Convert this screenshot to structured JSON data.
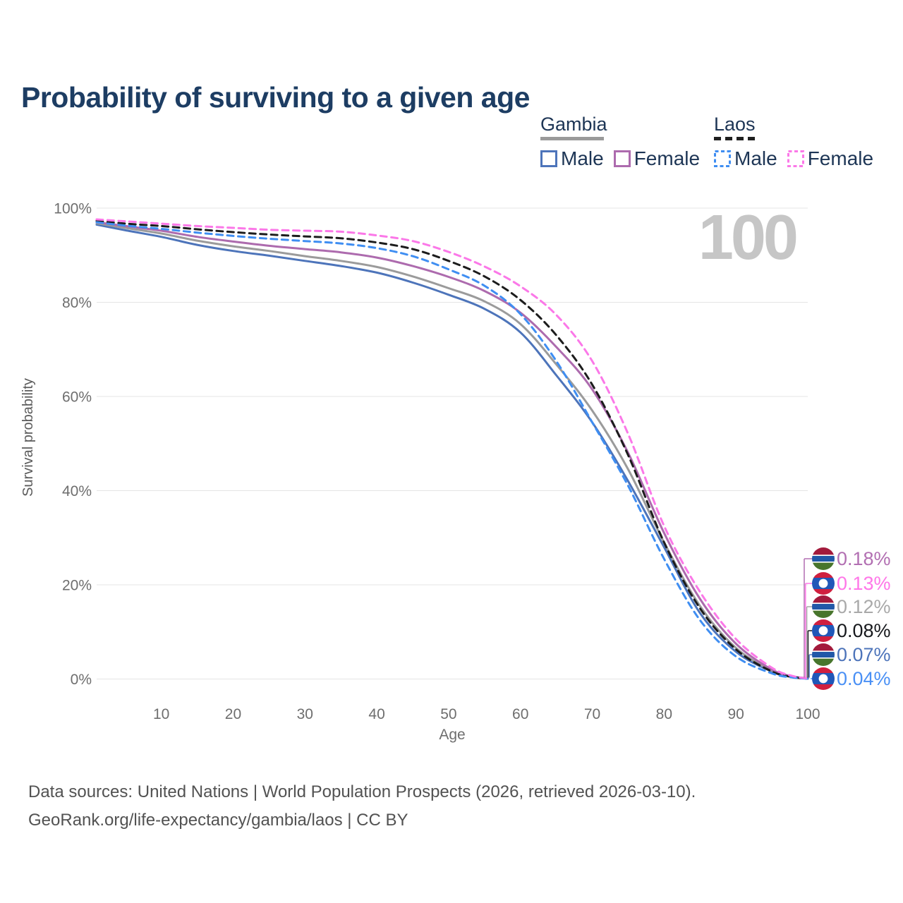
{
  "title": "Probability of surviving to a given age",
  "watermark": "100",
  "legend": {
    "groups": [
      {
        "label": "Gambia",
        "style": "solid",
        "underline_color": "#9a9a9a",
        "items": [
          {
            "label": "Male",
            "color": "#4d74ba"
          },
          {
            "label": "Female",
            "color": "#ad6bae"
          }
        ]
      },
      {
        "label": "Laos",
        "style": "dashed",
        "underline_color": "#1f1f1f",
        "items": [
          {
            "label": "Male",
            "color": "#3f8ef2"
          },
          {
            "label": "Female",
            "color": "#fb78e8"
          }
        ]
      }
    ]
  },
  "y_axis": {
    "label": "Survival probability",
    "ticks": [
      {
        "label": "100%",
        "value": 100
      },
      {
        "label": "80%",
        "value": 80
      },
      {
        "label": "60%",
        "value": 60
      },
      {
        "label": "40%",
        "value": 40
      },
      {
        "label": "20%",
        "value": 20
      },
      {
        "label": "0%",
        "value": 0
      }
    ]
  },
  "x_axis": {
    "label": "Age",
    "ticks": [
      {
        "label": "10",
        "value": 10
      },
      {
        "label": "20",
        "value": 20
      },
      {
        "label": "30",
        "value": 30
      },
      {
        "label": "40",
        "value": 40
      },
      {
        "label": "50",
        "value": 50
      },
      {
        "label": "60",
        "value": 60
      },
      {
        "label": "70",
        "value": 70
      },
      {
        "label": "80",
        "value": 80
      },
      {
        "label": "90",
        "value": 90
      },
      {
        "label": "100",
        "value": 100
      }
    ]
  },
  "end_labels": [
    {
      "value": "0.18%",
      "flag": "gambia",
      "color": "#b26fb2",
      "series": "Gambia Female"
    },
    {
      "value": "0.13%",
      "flag": "laos",
      "color": "#ff77e8",
      "series": "Laos Female"
    },
    {
      "value": "0.12%",
      "flag": "gambia",
      "color": "#a9a9a9",
      "series": "Gambia"
    },
    {
      "value": "0.08%",
      "flag": "laos",
      "color": "#17191d",
      "series": "Laos"
    },
    {
      "value": "0.07%",
      "flag": "gambia",
      "color": "#4d74ba",
      "series": "Gambia Male"
    },
    {
      "value": "0.04%",
      "flag": "laos",
      "color": "#4a90f5",
      "series": "Laos Male"
    }
  ],
  "footer": {
    "line1": "Data sources: United Nations | World Population Prospects (2026, retrieved 2026-03-10).",
    "line2": "GeoRank.org/life-expectancy/gambia/laos | CC BY"
  },
  "colors": {
    "grid": "#e4e4e4",
    "tick": "#6e6e6e",
    "axis_label": "#5b5b5b"
  },
  "chart_data": {
    "type": "line",
    "title": "Probability of surviving to a given age",
    "xlabel": "Age",
    "ylabel": "Survival probability",
    "xlim": [
      1,
      100
    ],
    "ylim": [
      0,
      100
    ],
    "grid": "horizontal",
    "legend_position": "top-right",
    "series": [
      {
        "name": "Gambia Male",
        "country": "Gambia",
        "style": "solid",
        "color": "#4d74ba",
        "end_label": "0.07%",
        "points": [
          [
            1,
            96.5
          ],
          [
            5,
            95.3
          ],
          [
            10,
            93.9
          ],
          [
            15,
            92.2
          ],
          [
            20,
            90.9
          ],
          [
            25,
            89.9
          ],
          [
            30,
            88.8
          ],
          [
            35,
            87.7
          ],
          [
            40,
            86.3
          ],
          [
            45,
            84.2
          ],
          [
            50,
            81.6
          ],
          [
            55,
            78.6
          ],
          [
            60,
            73.6
          ],
          [
            65,
            64.5
          ],
          [
            70,
            54.5
          ],
          [
            75,
            42.0
          ],
          [
            80,
            28.0
          ],
          [
            85,
            14.0
          ],
          [
            90,
            5.8
          ],
          [
            95,
            1.6
          ],
          [
            98,
            0.4
          ],
          [
            100,
            0.07
          ]
        ]
      },
      {
        "name": "Gambia",
        "country": "Gambia",
        "style": "solid",
        "color": "#9b9b9b",
        "end_label": "0.12%",
        "points": [
          [
            1,
            96.8
          ],
          [
            5,
            95.8
          ],
          [
            10,
            94.6
          ],
          [
            15,
            93.1
          ],
          [
            20,
            91.9
          ],
          [
            25,
            90.9
          ],
          [
            30,
            89.8
          ],
          [
            35,
            88.8
          ],
          [
            40,
            87.5
          ],
          [
            45,
            85.5
          ],
          [
            50,
            83.0
          ],
          [
            55,
            80.2
          ],
          [
            60,
            75.4
          ],
          [
            65,
            66.8
          ],
          [
            70,
            57.0
          ],
          [
            75,
            44.5
          ],
          [
            80,
            29.0
          ],
          [
            85,
            15.5
          ],
          [
            90,
            6.6
          ],
          [
            95,
            1.8
          ],
          [
            98,
            0.45
          ],
          [
            100,
            0.12
          ]
        ]
      },
      {
        "name": "Gambia Female",
        "country": "Gambia",
        "style": "solid",
        "color": "#ad6bae",
        "end_label": "0.18%",
        "points": [
          [
            1,
            97.0
          ],
          [
            5,
            96.2
          ],
          [
            10,
            95.2
          ],
          [
            15,
            93.9
          ],
          [
            20,
            92.9
          ],
          [
            25,
            92.0
          ],
          [
            30,
            91.3
          ],
          [
            35,
            90.6
          ],
          [
            40,
            89.5
          ],
          [
            45,
            87.7
          ],
          [
            50,
            85.4
          ],
          [
            55,
            82.4
          ],
          [
            60,
            77.8
          ],
          [
            65,
            70.5
          ],
          [
            70,
            61.5
          ],
          [
            75,
            48.0
          ],
          [
            80,
            31.0
          ],
          [
            85,
            17.0
          ],
          [
            90,
            7.5
          ],
          [
            95,
            2.0
          ],
          [
            98,
            0.55
          ],
          [
            100,
            0.18
          ]
        ]
      },
      {
        "name": "Laos",
        "country": "Laos",
        "style": "dashed",
        "color": "#1c1c1c",
        "end_label": "0.08%",
        "points": [
          [
            1,
            97.3
          ],
          [
            5,
            96.7
          ],
          [
            10,
            96.2
          ],
          [
            15,
            95.5
          ],
          [
            20,
            94.9
          ],
          [
            25,
            94.4
          ],
          [
            30,
            94.0
          ],
          [
            35,
            93.6
          ],
          [
            40,
            92.7
          ],
          [
            45,
            91.3
          ],
          [
            50,
            88.8
          ],
          [
            55,
            85.5
          ],
          [
            60,
            80.5
          ],
          [
            65,
            73.0
          ],
          [
            70,
            62.5
          ],
          [
            75,
            47.5
          ],
          [
            80,
            29.0
          ],
          [
            85,
            15.0
          ],
          [
            90,
            6.3
          ],
          [
            95,
            1.6
          ],
          [
            98,
            0.4
          ],
          [
            100,
            0.08
          ]
        ]
      },
      {
        "name": "Laos Male",
        "country": "Laos",
        "style": "dashed",
        "color": "#3f8ef2",
        "end_label": "0.04%",
        "points": [
          [
            1,
            97.0
          ],
          [
            5,
            96.3
          ],
          [
            10,
            95.6
          ],
          [
            15,
            94.8
          ],
          [
            20,
            94.1
          ],
          [
            25,
            93.5
          ],
          [
            30,
            93.0
          ],
          [
            35,
            92.5
          ],
          [
            40,
            91.5
          ],
          [
            45,
            89.8
          ],
          [
            50,
            87.0
          ],
          [
            55,
            83.5
          ],
          [
            60,
            77.5
          ],
          [
            65,
            67.5
          ],
          [
            70,
            54.5
          ],
          [
            75,
            41.0
          ],
          [
            80,
            25.5
          ],
          [
            85,
            12.5
          ],
          [
            90,
            4.8
          ],
          [
            95,
            1.2
          ],
          [
            98,
            0.3
          ],
          [
            100,
            0.04
          ]
        ]
      },
      {
        "name": "Laos Female",
        "country": "Laos",
        "style": "dashed",
        "color": "#fb78e8",
        "end_label": "0.13%",
        "points": [
          [
            1,
            97.6
          ],
          [
            5,
            97.2
          ],
          [
            10,
            96.7
          ],
          [
            15,
            96.2
          ],
          [
            20,
            95.8
          ],
          [
            25,
            95.4
          ],
          [
            30,
            95.2
          ],
          [
            35,
            95.0
          ],
          [
            40,
            94.2
          ],
          [
            45,
            93.0
          ],
          [
            50,
            90.7
          ],
          [
            55,
            87.6
          ],
          [
            60,
            83.4
          ],
          [
            65,
            77.3
          ],
          [
            70,
            67.5
          ],
          [
            75,
            52.0
          ],
          [
            80,
            32.5
          ],
          [
            85,
            18.5
          ],
          [
            90,
            8.5
          ],
          [
            95,
            2.4
          ],
          [
            98,
            0.6
          ],
          [
            100,
            0.13
          ]
        ]
      }
    ]
  }
}
